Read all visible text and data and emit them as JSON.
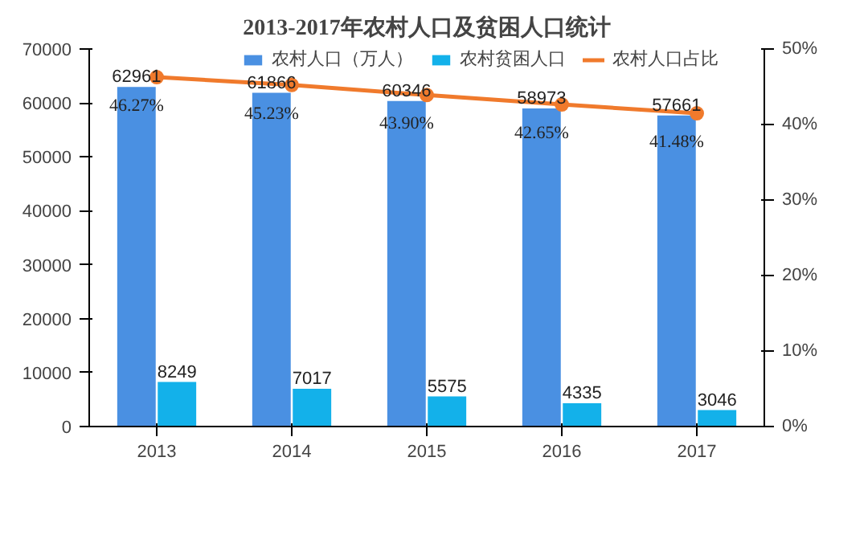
{
  "chart_data": {
    "type": "bar",
    "title": "2013-2017年农村人口及贫困人口统计",
    "categories": [
      "2013",
      "2014",
      "2015",
      "2016",
      "2017"
    ],
    "series": [
      {
        "name": "农村人口（万人）",
        "color": "#4a90e2",
        "values": [
          62961,
          61866,
          60346,
          58973,
          57661
        ]
      },
      {
        "name": "农村贫困人口",
        "color": "#13b1ea",
        "values": [
          8249,
          7017,
          5575,
          4335,
          3046
        ]
      },
      {
        "name": "农村人口占比",
        "type": "line",
        "axis": "y2",
        "color": "#f07a2c",
        "values": [
          46.27,
          45.23,
          43.9,
          42.65,
          41.48
        ],
        "value_labels": [
          "46.27%",
          "45.23%",
          "43.90%",
          "42.65%",
          "41.48%"
        ]
      }
    ],
    "ylim": [
      0,
      70000
    ],
    "yticks": [
      0,
      10000,
      20000,
      30000,
      40000,
      50000,
      60000,
      70000
    ],
    "y2lim": [
      0,
      50
    ],
    "y2ticks": [
      {
        "value": 0,
        "label": "0%"
      },
      {
        "value": 10,
        "label": "10%"
      },
      {
        "value": 20,
        "label": "20%"
      },
      {
        "value": 30,
        "label": "30%"
      },
      {
        "value": 40,
        "label": "40%"
      },
      {
        "value": 50,
        "label": "50%"
      }
    ],
    "data_labels": true,
    "legend": "top",
    "marker": "circle",
    "grid": false
  }
}
